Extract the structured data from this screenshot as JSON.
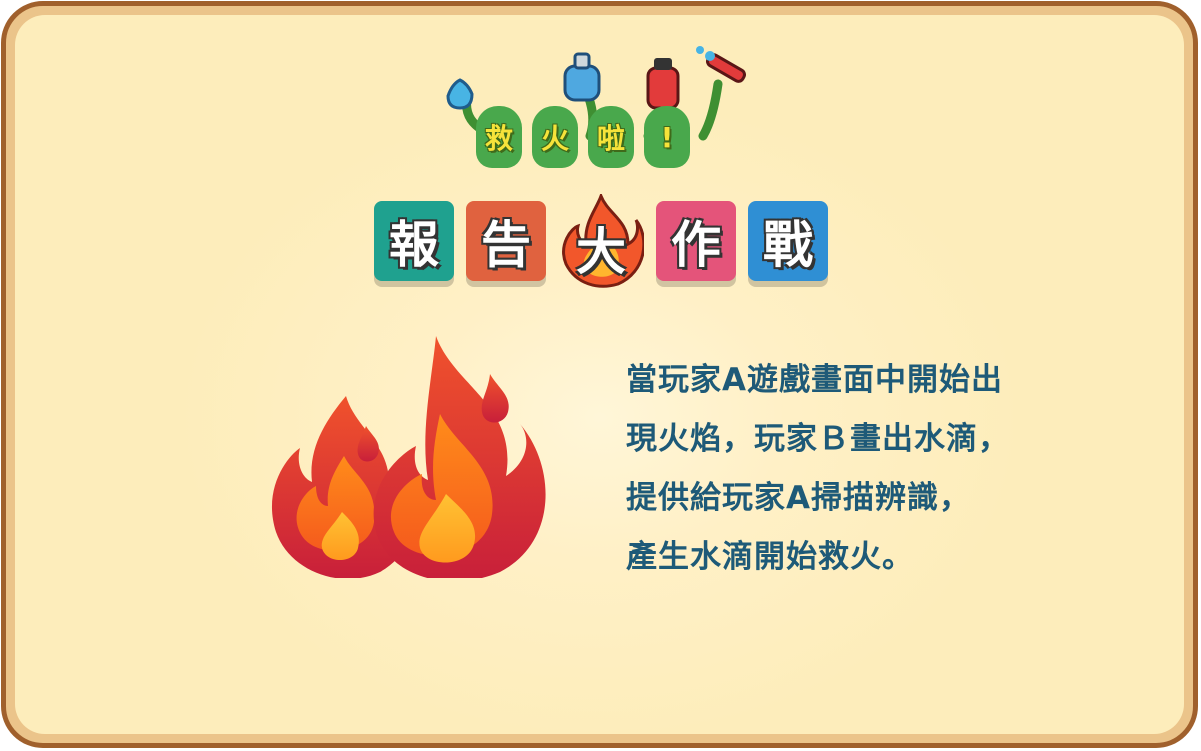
{
  "logo": {
    "subtitle_chars": [
      "救",
      "火",
      "啦",
      "!"
    ],
    "title_chars": [
      "報",
      "告",
      "大",
      "作",
      "戰"
    ],
    "colors": {
      "sub_tile": "#49a84c",
      "tile_1": "#1fa18f",
      "tile_2": "#e0623f",
      "tile_3_flame": "#f2572b",
      "tile_4": "#e4547a",
      "tile_5": "#2f8fd4"
    }
  },
  "illustration": {
    "icon": "fire-icon"
  },
  "description": {
    "lines": [
      "當玩家A遊戲畫面中開始出",
      "現火焰，玩家Ｂ畫出水滴，",
      "提供給玩家A掃描辨識，",
      "產生水滴開始救火。"
    ]
  },
  "theme": {
    "border": "#a0602c",
    "background": "#fdedbb",
    "text": "#1e5a78"
  }
}
